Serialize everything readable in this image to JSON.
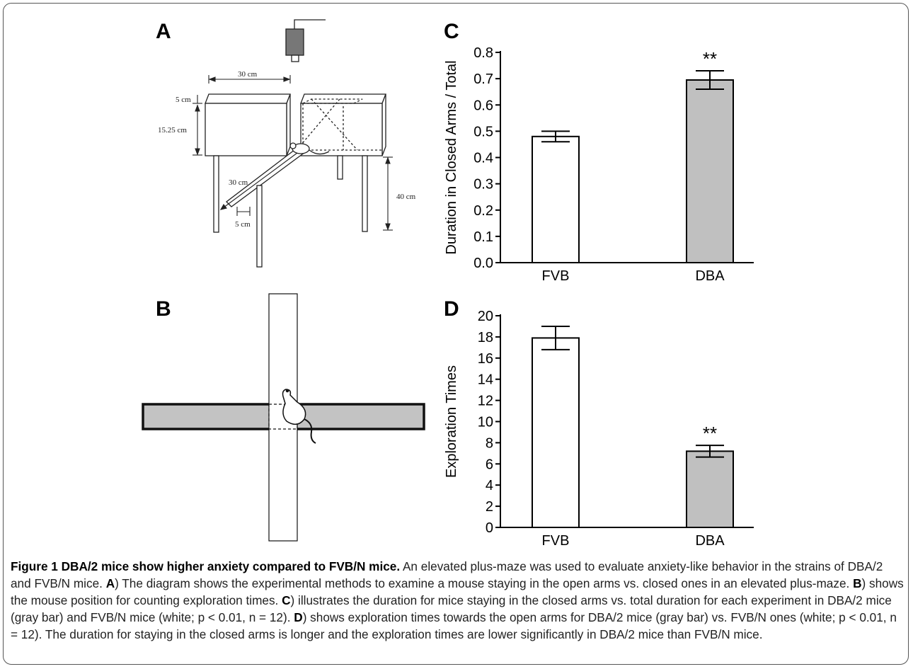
{
  "figure": {
    "panels": {
      "a": {
        "letter": "A",
        "dims": {
          "top_width": "30 cm",
          "wall_thickness": "5 cm",
          "wall_height": "15.25 cm",
          "arm_length": "30 cm",
          "height": "40 cm",
          "arm_width": "5 cm"
        }
      },
      "b": {
        "letter": "B"
      },
      "c": {
        "letter": "C"
      },
      "d": {
        "letter": "D"
      }
    },
    "caption": {
      "title": "Figure 1 DBA/2 mice show higher anxiety compared to FVB/N mice.",
      "intro": " An elevated plus-maze was used to evaluate anxiety-like behavior in the strains of DBA/2 and FVB/N mice. ",
      "a_letter": "A",
      "a_text": ") The diagram shows the experimental methods to examine a mouse staying in the open arms vs. closed ones in an elevated plus-maze. ",
      "b_letter": "B",
      "b_text": ") shows the mouse position for counting exploration times. ",
      "c_letter": "C",
      "c_text": ") illustrates the duration for mice staying in the closed arms vs. total duration for each experiment in DBA/2 mice (gray bar) and FVB/N mice (white; p < 0.01, n = 12). ",
      "d_letter": "D",
      "d_text": ") shows exploration times towards the open arms for DBA/2 mice (gray bar) vs. FVB/N ones (white; p < 0.01, n = 12). The duration for staying in the closed arms is longer and the exploration times are lower significantly in DBA/2 mice than FVB/N mice."
    }
  },
  "chart_data": [
    {
      "type": "bar",
      "panel": "C",
      "categories": [
        "FVB",
        "DBA"
      ],
      "values": [
        0.48,
        0.695
      ],
      "errors": [
        0.02,
        0.035
      ],
      "significance": [
        "",
        "**"
      ],
      "bar_colors": [
        "#ffffff",
        "#c0c0c0"
      ],
      "ylabel": "Duration in Closed Arms / Total",
      "ylim": [
        0,
        0.8
      ],
      "yticks": [
        0.0,
        0.1,
        0.2,
        0.3,
        0.4,
        0.5,
        0.6,
        0.7,
        0.8
      ],
      "ytick_labels": [
        "0.0",
        "0.1",
        "0.2",
        "0.3",
        "0.4",
        "0.5",
        "0.6",
        "0.7",
        "0.8"
      ]
    },
    {
      "type": "bar",
      "panel": "D",
      "categories": [
        "FVB",
        "DBA"
      ],
      "values": [
        17.9,
        7.2
      ],
      "errors": [
        1.1,
        0.55
      ],
      "significance": [
        "",
        "**"
      ],
      "bar_colors": [
        "#ffffff",
        "#c0c0c0"
      ],
      "ylabel": "Exploration Times",
      "ylim": [
        0,
        20
      ],
      "yticks": [
        0,
        2,
        4,
        6,
        8,
        10,
        12,
        14,
        16,
        18,
        20
      ],
      "ytick_labels": [
        "0",
        "2",
        "4",
        "6",
        "8",
        "10",
        "12",
        "14",
        "16",
        "18",
        "20"
      ]
    }
  ]
}
